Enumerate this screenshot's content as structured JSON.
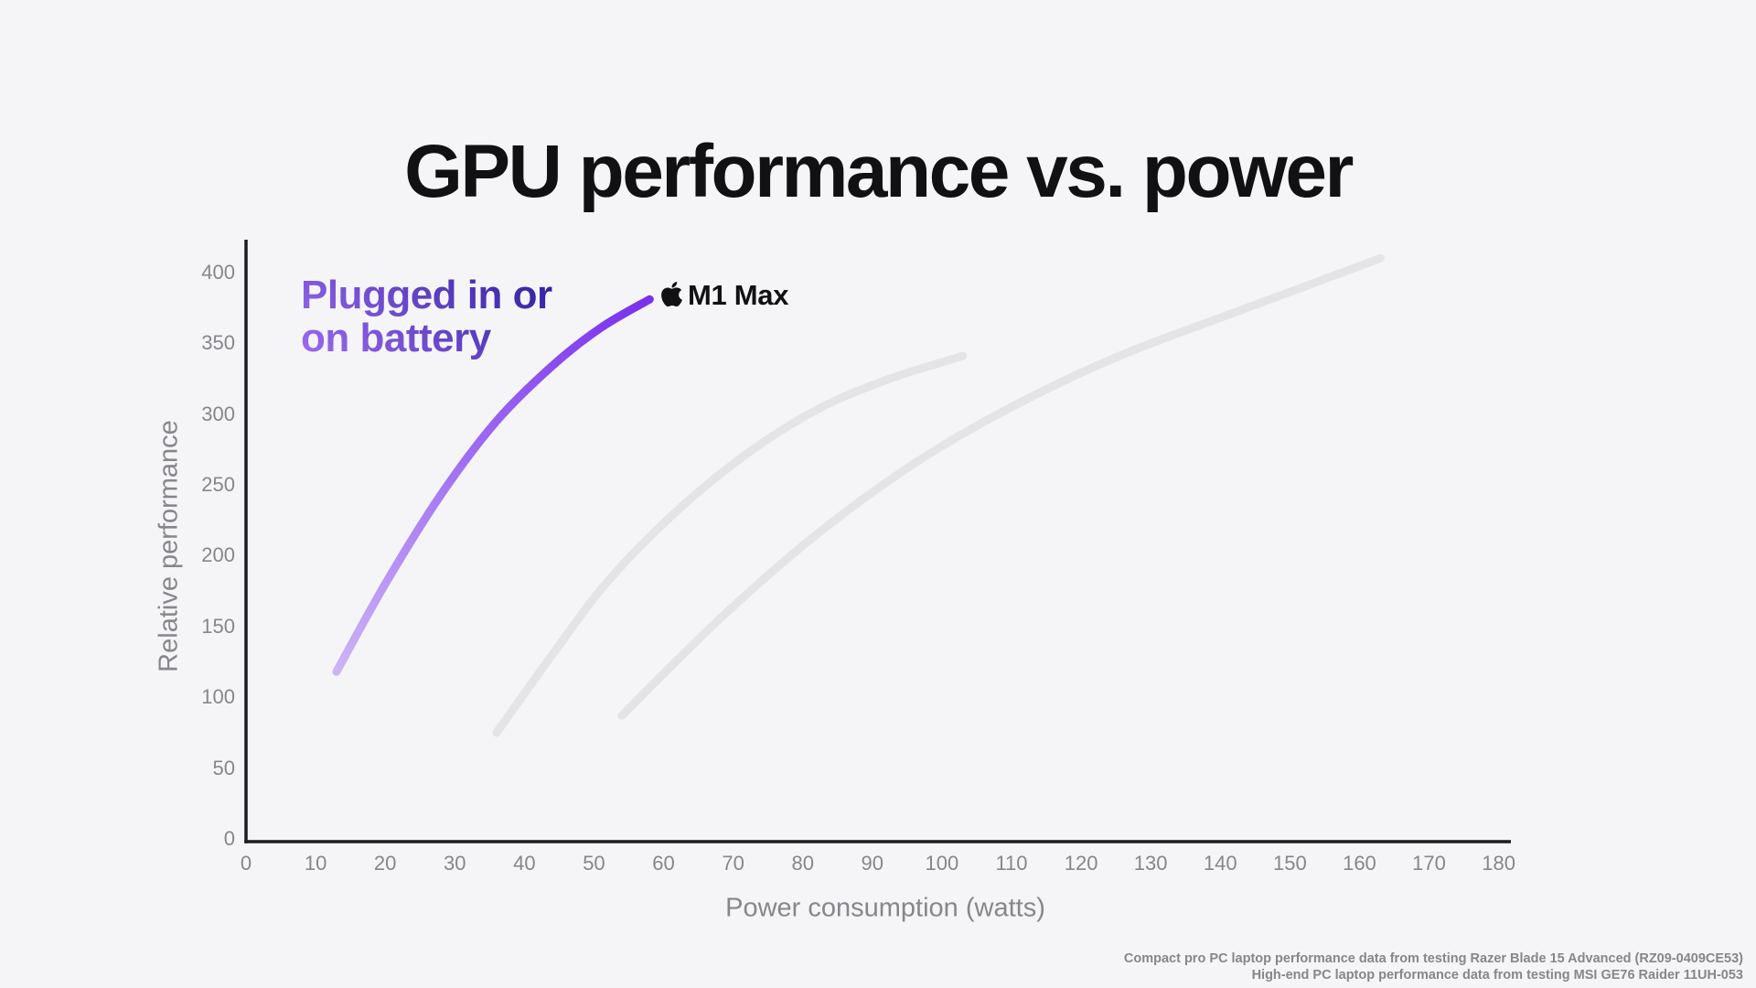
{
  "page": {
    "background": "#f5f5f7",
    "title": "GPU performance vs. power"
  },
  "chart_data": {
    "type": "line",
    "title": "GPU performance vs. power",
    "xlabel": "Power consumption (watts)",
    "ylabel": "Relative performance",
    "xlim": [
      0,
      180
    ],
    "ylim": [
      0,
      400
    ],
    "grid": false,
    "legend_position": "none",
    "x_ticks": [
      0,
      10,
      20,
      30,
      40,
      50,
      60,
      70,
      80,
      90,
      100,
      110,
      120,
      130,
      140,
      150,
      160,
      170,
      180
    ],
    "y_ticks": [
      0,
      50,
      100,
      150,
      200,
      250,
      300,
      350,
      400
    ],
    "series": [
      {
        "name": "Compact pro PC laptop (Razer Blade 15 Advanced)",
        "color": "#e4e4e6",
        "points": [
          [
            36,
            75
          ],
          [
            44,
            130
          ],
          [
            52,
            182
          ],
          [
            62,
            232
          ],
          [
            72,
            272
          ],
          [
            82,
            303
          ],
          [
            92,
            324
          ],
          [
            103,
            341
          ]
        ]
      },
      {
        "name": "High-end PC laptop (MSI GE76 Raider)",
        "color": "#e4e4e6",
        "points": [
          [
            54,
            87
          ],
          [
            68,
            155
          ],
          [
            82,
            215
          ],
          [
            96,
            265
          ],
          [
            110,
            305
          ],
          [
            125,
            340
          ],
          [
            140,
            368
          ],
          [
            151,
            388
          ],
          [
            163,
            410
          ]
        ]
      },
      {
        "name": "Apple M1 Max",
        "gradient": [
          "#ccb4f6",
          "#a06ff2",
          "#7a30ec"
        ],
        "points": [
          [
            13,
            118
          ],
          [
            20,
            180
          ],
          [
            28,
            243
          ],
          [
            36,
            295
          ],
          [
            44,
            334
          ],
          [
            51,
            361
          ],
          [
            58,
            381
          ]
        ]
      }
    ],
    "annotation": {
      "line1": "Plugged in or",
      "line2": "on battery"
    },
    "point_label": {
      "icon": "apple-logo",
      "text": "M1 Max",
      "at": [
        58,
        381
      ]
    }
  },
  "colors": {
    "background": "#f5f5f7",
    "axis": "#1d1d1f",
    "tick_text": "#86868b",
    "gray_curve": "#e4e4e6",
    "purple_curve_start": "#ccb4f6",
    "purple_curve_end": "#7a30ec",
    "annotation_gradient_start": "#9d6cf2",
    "annotation_gradient_end": "#2e1f9e"
  },
  "footnotes": [
    "Compact pro PC laptop performance data from testing Razer Blade 15 Advanced (RZ09-0409CE53)",
    "High-end PC laptop performance data from testing MSI GE76 Raider 11UH-053"
  ]
}
